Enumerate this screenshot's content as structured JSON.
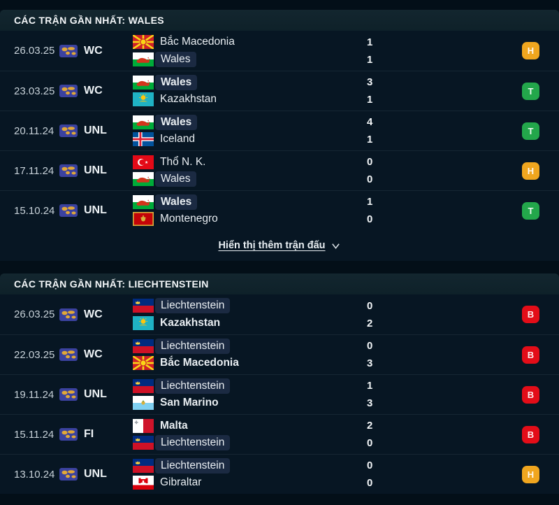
{
  "colors": {
    "page_bg": "#030f18",
    "row_bg": "#071623",
    "header_bg": "#0f232c",
    "highlight_box": "#1b2a42",
    "result_colors": {
      "H": "#f0a61f",
      "T": "#23a74b",
      "B": "#e30d18"
    }
  },
  "sections": [
    {
      "title": "CÁC TRẬN GẦN NHẤT: WALES",
      "show_more": "Hiển thị thêm trận đấu",
      "matches": [
        {
          "date": "26.03.25",
          "comp": "WC",
          "result": "H",
          "teams": [
            {
              "name": "Bắc Macedonia",
              "flag": "north-macedonia",
              "score": "1",
              "bold": false,
              "highlight": false
            },
            {
              "name": "Wales",
              "flag": "wales",
              "score": "1",
              "bold": false,
              "highlight": true
            }
          ]
        },
        {
          "date": "23.03.25",
          "comp": "WC",
          "result": "T",
          "teams": [
            {
              "name": "Wales",
              "flag": "wales",
              "score": "3",
              "bold": true,
              "highlight": true
            },
            {
              "name": "Kazakhstan",
              "flag": "kazakhstan",
              "score": "1",
              "bold": false,
              "highlight": false
            }
          ]
        },
        {
          "date": "20.11.24",
          "comp": "UNL",
          "result": "T",
          "teams": [
            {
              "name": "Wales",
              "flag": "wales",
              "score": "4",
              "bold": true,
              "highlight": true
            },
            {
              "name": "Iceland",
              "flag": "iceland",
              "score": "1",
              "bold": false,
              "highlight": false
            }
          ]
        },
        {
          "date": "17.11.24",
          "comp": "UNL",
          "result": "H",
          "teams": [
            {
              "name": "Thổ N. K.",
              "flag": "turkey",
              "score": "0",
              "bold": false,
              "highlight": false
            },
            {
              "name": "Wales",
              "flag": "wales",
              "score": "0",
              "bold": false,
              "highlight": true
            }
          ]
        },
        {
          "date": "15.10.24",
          "comp": "UNL",
          "result": "T",
          "teams": [
            {
              "name": "Wales",
              "flag": "wales",
              "score": "1",
              "bold": true,
              "highlight": true
            },
            {
              "name": "Montenegro",
              "flag": "montenegro",
              "score": "0",
              "bold": false,
              "highlight": false
            }
          ]
        }
      ]
    },
    {
      "title": "CÁC TRẬN GẦN NHẤT: LIECHTENSTEIN",
      "matches": [
        {
          "date": "26.03.25",
          "comp": "WC",
          "result": "B",
          "teams": [
            {
              "name": "Liechtenstein",
              "flag": "liechtenstein",
              "score": "0",
              "bold": false,
              "highlight": true
            },
            {
              "name": "Kazakhstan",
              "flag": "kazakhstan",
              "score": "2",
              "bold": true,
              "highlight": false
            }
          ]
        },
        {
          "date": "22.03.25",
          "comp": "WC",
          "result": "B",
          "teams": [
            {
              "name": "Liechtenstein",
              "flag": "liechtenstein",
              "score": "0",
              "bold": false,
              "highlight": true
            },
            {
              "name": "Bắc Macedonia",
              "flag": "north-macedonia",
              "score": "3",
              "bold": true,
              "highlight": false
            }
          ]
        },
        {
          "date": "19.11.24",
          "comp": "UNL",
          "result": "B",
          "teams": [
            {
              "name": "Liechtenstein",
              "flag": "liechtenstein",
              "score": "1",
              "bold": false,
              "highlight": true
            },
            {
              "name": "San Marino",
              "flag": "san-marino",
              "score": "3",
              "bold": true,
              "highlight": false
            }
          ]
        },
        {
          "date": "15.11.24",
          "comp": "FI",
          "result": "B",
          "teams": [
            {
              "name": "Malta",
              "flag": "malta",
              "score": "2",
              "bold": true,
              "highlight": false
            },
            {
              "name": "Liechtenstein",
              "flag": "liechtenstein",
              "score": "0",
              "bold": false,
              "highlight": true
            }
          ]
        },
        {
          "date": "13.10.24",
          "comp": "UNL",
          "result": "H",
          "teams": [
            {
              "name": "Liechtenstein",
              "flag": "liechtenstein",
              "score": "0",
              "bold": false,
              "highlight": true
            },
            {
              "name": "Gibraltar",
              "flag": "gibraltar",
              "score": "0",
              "bold": false,
              "highlight": false
            }
          ]
        }
      ]
    }
  ]
}
